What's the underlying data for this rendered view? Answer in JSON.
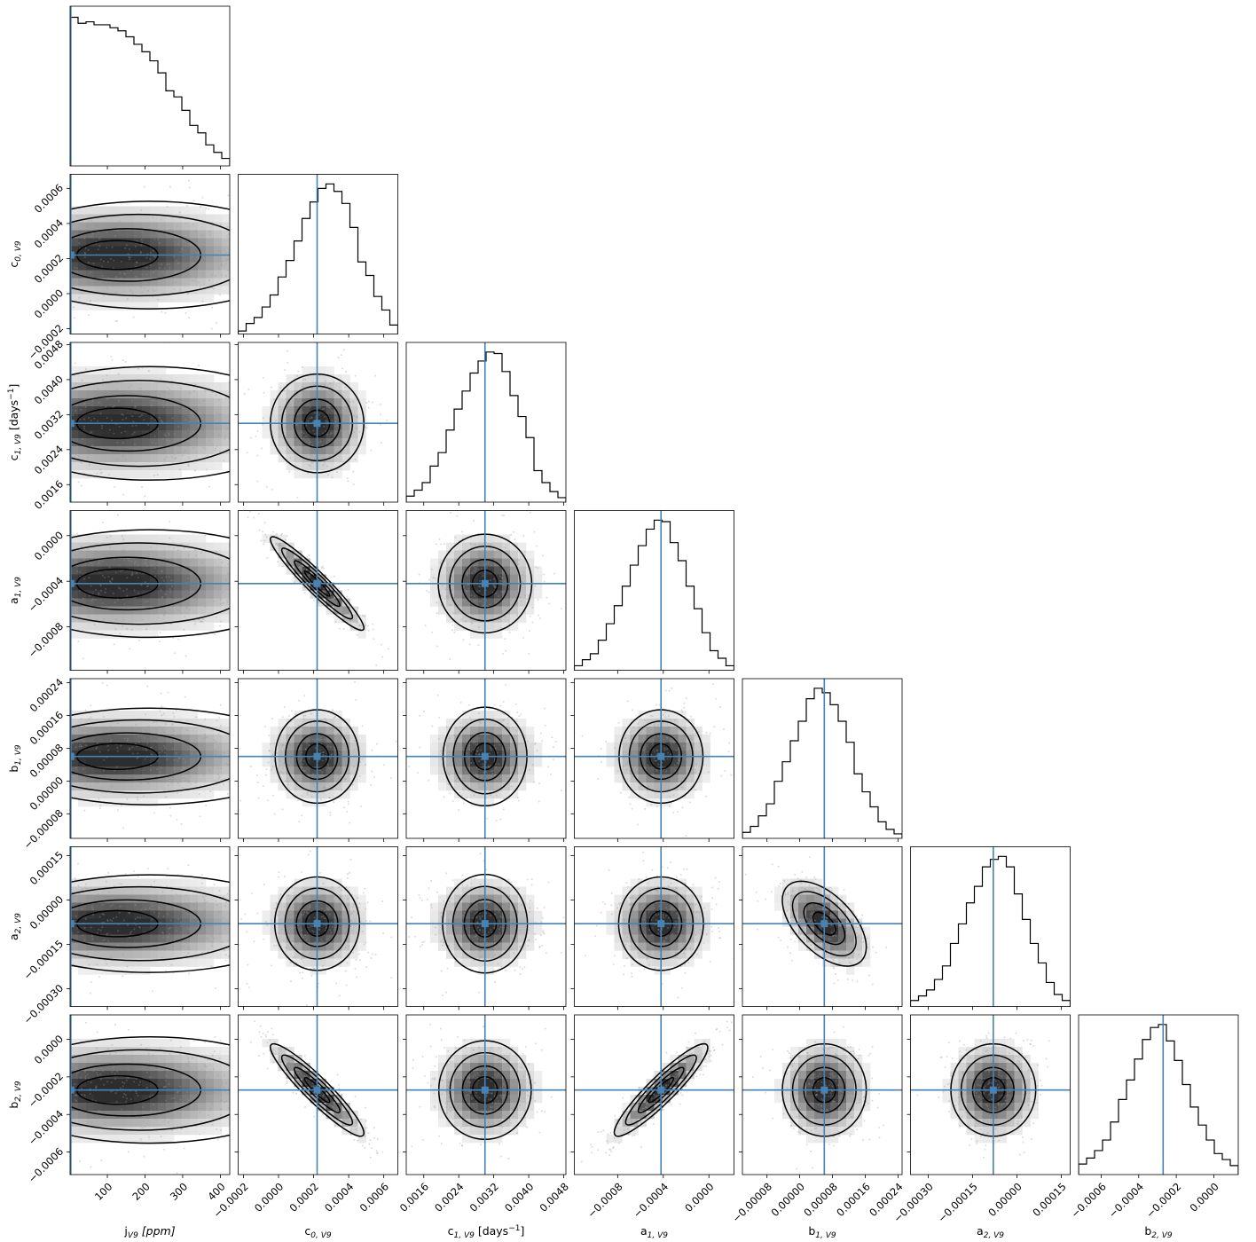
{
  "chart_data": {
    "type": "corner",
    "truth_color": "#4682b4",
    "params": [
      {
        "key": "j",
        "label_main": "j",
        "label_sub": "V9",
        "label_tail": " [ppm]",
        "tail_italic": true,
        "range": [
          1,
          425
        ],
        "truth": 3,
        "mean": 150,
        "std": 110,
        "ticks": [
          100,
          200,
          300,
          400
        ],
        "tick_labels": [
          "100",
          "200",
          "300",
          "400"
        ],
        "hist": [
          0.99,
          0.95,
          0.96,
          0.94,
          0.94,
          0.92,
          0.9,
          0.86,
          0.81,
          0.76,
          0.7,
          0.62,
          0.5,
          0.46,
          0.37,
          0.27,
          0.22,
          0.14,
          0.09,
          0.05
        ]
      },
      {
        "key": "c0",
        "label_main": "c",
        "label_sub": "0, V9",
        "label_tail": "",
        "range": [
          -0.00023,
          0.00068
        ],
        "truth": 0.00022,
        "mean": 0.00022,
        "std": 0.00013,
        "ticks": [
          -0.0002,
          0.0,
          0.0002,
          0.0004,
          0.0006
        ],
        "tick_labels": [
          "−0.0002",
          "0.0000",
          "0.0002",
          "0.0004",
          "0.0006"
        ],
        "hist": [
          0.02,
          0.07,
          0.11,
          0.18,
          0.26,
          0.38,
          0.49,
          0.62,
          0.77,
          0.88,
          0.97,
          1.0,
          0.95,
          0.87,
          0.71,
          0.48,
          0.39,
          0.25,
          0.16,
          0.06
        ]
      },
      {
        "key": "c1",
        "label_main": "c",
        "label_sub": "1, V9",
        "label_tail": " [days",
        "tail_sup": "−1",
        "tail_end": "]",
        "range": [
          0.0012,
          0.00485
        ],
        "truth": 0.003,
        "mean": 0.003,
        "std": 0.00055,
        "ticks": [
          0.0016,
          0.0024,
          0.0032,
          0.004,
          0.0048
        ],
        "tick_labels": [
          "0.0016",
          "0.0024",
          "0.0032",
          "0.0040",
          "0.0048"
        ],
        "hist": [
          0.04,
          0.08,
          0.13,
          0.24,
          0.33,
          0.48,
          0.62,
          0.74,
          0.86,
          0.94,
          1.0,
          0.99,
          0.87,
          0.71,
          0.57,
          0.43,
          0.21,
          0.13,
          0.07,
          0.03
        ]
      },
      {
        "key": "a1",
        "label_main": "a",
        "label_sub": "1, V9",
        "label_tail": "",
        "range": [
          -0.00118,
          0.00022
        ],
        "truth": -0.00042,
        "mean": -0.00042,
        "std": 0.0002,
        "ticks": [
          -0.0008,
          -0.0004,
          0.0
        ],
        "tick_labels": [
          "−0.0008",
          "−0.0004",
          "0.0000"
        ],
        "hist": [
          0.03,
          0.07,
          0.11,
          0.2,
          0.31,
          0.43,
          0.56,
          0.7,
          0.83,
          0.94,
          1.0,
          0.99,
          0.85,
          0.73,
          0.56,
          0.41,
          0.25,
          0.13,
          0.08,
          0.03
        ]
      },
      {
        "key": "b1",
        "label_main": "b",
        "label_sub": "1, V9",
        "label_tail": "",
        "range": [
          -0.00014,
          0.00025
        ],
        "truth": 6e-05,
        "mean": 6e-05,
        "std": 5e-05,
        "ticks": [
          -8e-05,
          0.0,
          8e-05,
          0.00016,
          0.00024
        ],
        "tick_labels": [
          "−0.00008",
          "0.00000",
          "0.00008",
          "0.00016",
          "0.00024"
        ],
        "hist": [
          0.04,
          0.08,
          0.15,
          0.23,
          0.38,
          0.51,
          0.65,
          0.78,
          0.93,
          1.0,
          0.97,
          0.89,
          0.78,
          0.64,
          0.43,
          0.31,
          0.21,
          0.11,
          0.06,
          0.03
        ]
      },
      {
        "key": "a2",
        "label_main": "a",
        "label_sub": "2, V9",
        "label_tail": "",
        "range": [
          -0.00036,
          0.00018
        ],
        "truth": -8e-05,
        "mean": -8e-05,
        "std": 7e-05,
        "ticks": [
          -0.0003,
          -0.00015,
          0.0,
          0.00015
        ],
        "tick_labels": [
          "−0.00030",
          "−0.00015",
          "0.00000",
          "0.00015"
        ],
        "hist": [
          0.04,
          0.07,
          0.11,
          0.18,
          0.27,
          0.42,
          0.55,
          0.69,
          0.8,
          0.93,
          0.98,
          1.0,
          0.93,
          0.75,
          0.58,
          0.42,
          0.29,
          0.16,
          0.08,
          0.04
        ]
      },
      {
        "key": "b2",
        "label_main": "b",
        "label_sub": "2, V9",
        "label_tail": "",
        "range": [
          -0.00072,
          0.00013
        ],
        "truth": -0.00027,
        "mean": -0.00027,
        "std": 0.00012,
        "ticks": [
          -0.0006,
          -0.0004,
          -0.0002,
          0.0
        ],
        "tick_labels": [
          "−0.0006",
          "−0.0004",
          "−0.0002",
          "0.0000"
        ],
        "hist": [
          0.07,
          0.11,
          0.16,
          0.23,
          0.35,
          0.5,
          0.63,
          0.77,
          0.9,
          0.98,
          1.0,
          0.89,
          0.76,
          0.6,
          0.45,
          0.33,
          0.23,
          0.14,
          0.1,
          0.06
        ]
      }
    ],
    "correlations": [
      [
        1,
        0,
        0,
        0,
        0,
        0,
        0
      ],
      [
        0,
        1,
        0,
        -0.95,
        0,
        0,
        -0.93
      ],
      [
        0,
        0,
        1,
        0,
        0,
        0,
        0
      ],
      [
        0,
        -0.95,
        0,
        1,
        0,
        0,
        0.92
      ],
      [
        0,
        0,
        0,
        0,
        1,
        -0.55,
        0
      ],
      [
        0,
        0,
        0,
        0,
        -0.55,
        1,
        0
      ],
      [
        0,
        -0.93,
        0,
        0.92,
        0,
        0,
        1
      ]
    ],
    "grid": false,
    "legend": "none"
  }
}
